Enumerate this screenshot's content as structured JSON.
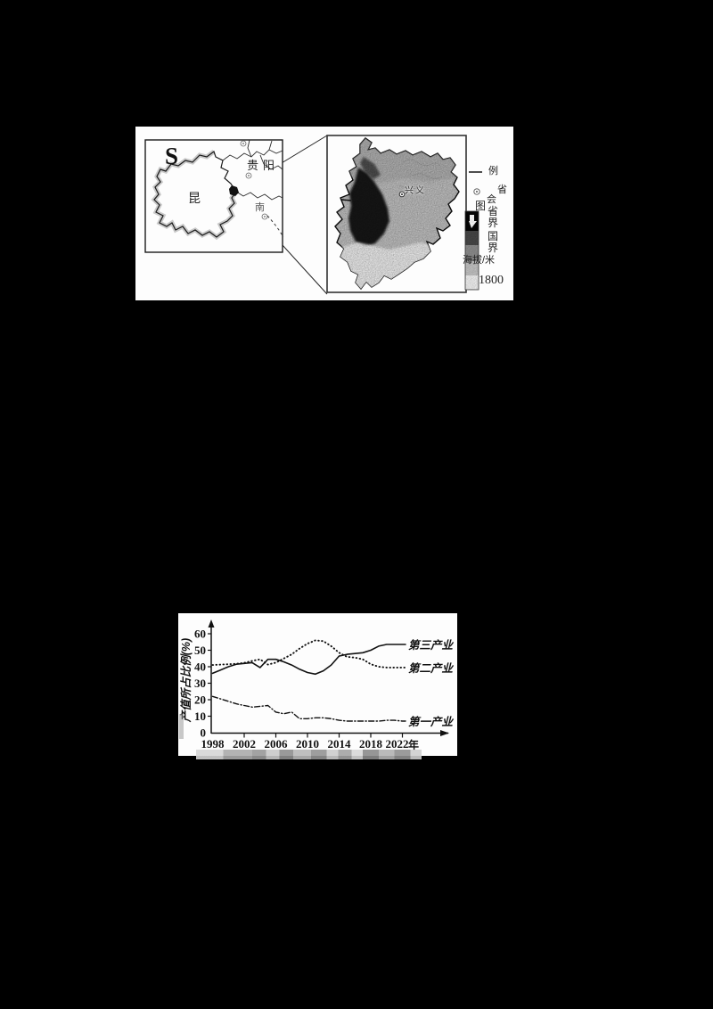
{
  "page": {
    "background": "#000000",
    "paper_color": "#fdfdfd"
  },
  "map_figure": {
    "locator": {
      "north_letter": "S",
      "labels": {
        "guiyang": "贵阳",
        "kunming": "昆",
        "nanning": "南"
      }
    },
    "detail": {
      "city": "兴义"
    },
    "legend": {
      "line_symbol_label": "例",
      "capital_symbol_label": "省",
      "char_tu": "图",
      "char_hui": "会",
      "col_chars": [
        "省",
        "界",
        "国",
        "界"
      ],
      "elevation_label": "海拔/米",
      "elevation_min": "1800"
    }
  },
  "chart_data": {
    "type": "line",
    "title": "",
    "ylabel": "产值所占比例(%)",
    "xlabel": "",
    "x_suffix": "年",
    "x_range": [
      1998,
      2022
    ],
    "x_step_years": 1,
    "x_tick_labels": [
      "1998",
      "2002",
      "2006",
      "2010",
      "2014",
      "2018",
      "2022"
    ],
    "y_ticks": [
      0,
      10,
      20,
      30,
      40,
      50,
      60
    ],
    "ylim": [
      0,
      60
    ],
    "grid": false,
    "legend_position": "right-of-line-ends",
    "series": [
      {
        "name": "第三产业",
        "style": "solid",
        "values": [
          36,
          38,
          40,
          41.5,
          42,
          42.5,
          39.5,
          44.5,
          44.5,
          43,
          41,
          38.5,
          36.5,
          35.5,
          37.5,
          41,
          46.5,
          47.5,
          48,
          48.5,
          50,
          52.5,
          53.5,
          53.5,
          53.5
        ]
      },
      {
        "name": "第二产业",
        "style": "dotted",
        "values": [
          41,
          41.3,
          41.5,
          41.8,
          42.3,
          43.5,
          44.5,
          41.3,
          42.5,
          45,
          47.5,
          51,
          54,
          56,
          55.5,
          52.5,
          48.5,
          46,
          45.5,
          44.5,
          41.5,
          40,
          39.5,
          39.5,
          39.5
        ]
      },
      {
        "name": "第一产业",
        "style": "dashdot",
        "values": [
          22,
          20.5,
          19,
          17.5,
          16.5,
          15.5,
          16,
          16.5,
          12.5,
          11.5,
          12.5,
          8.5,
          8.5,
          9,
          9,
          8.5,
          7.5,
          7,
          7,
          7,
          7,
          7,
          7.5,
          7.5,
          7
        ]
      }
    ]
  }
}
